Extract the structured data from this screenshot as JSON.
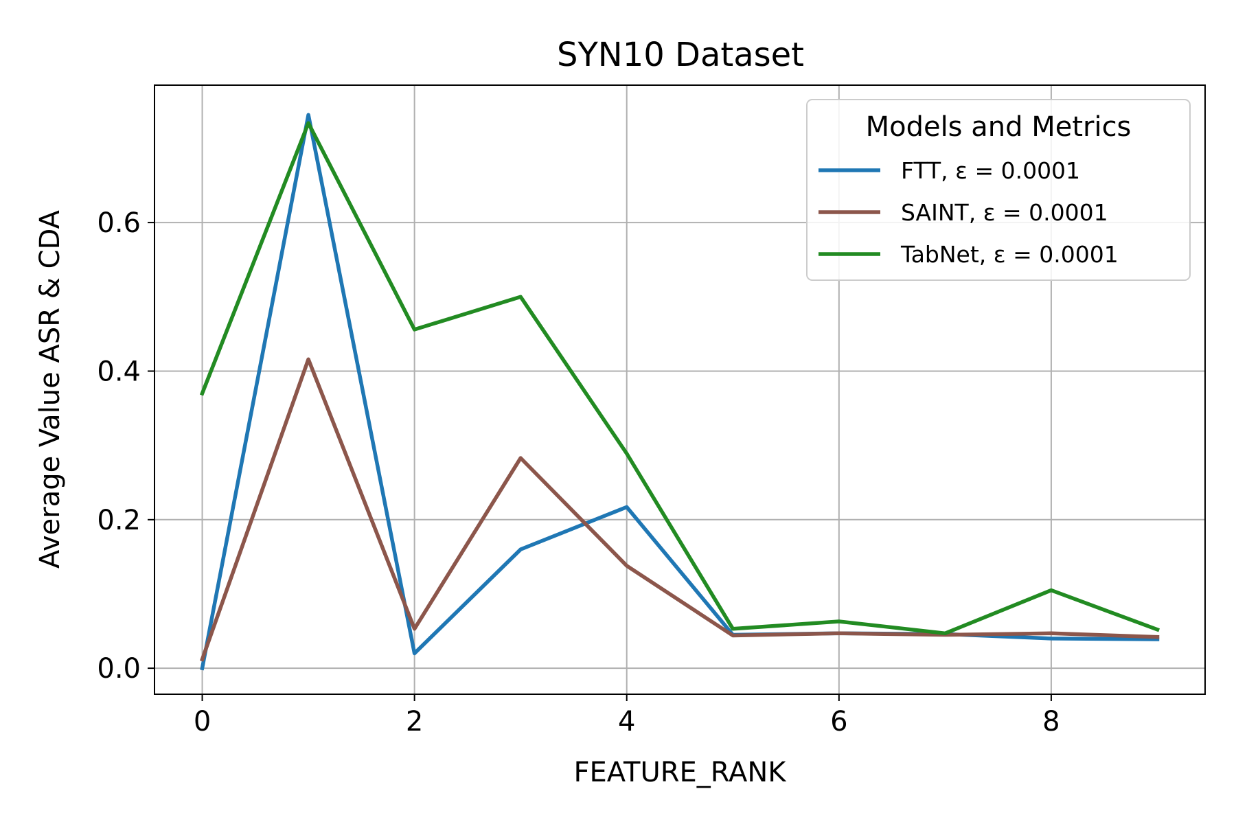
{
  "chart_data": {
    "type": "line",
    "title": "SYN10 Dataset",
    "xlabel": "FEATURE_RANK",
    "ylabel": "Average Value ASR & CDA",
    "x": [
      0,
      1,
      2,
      3,
      4,
      5,
      6,
      7,
      8,
      9
    ],
    "xlim": [
      -0.45,
      9.45
    ],
    "ylim": [
      -0.035,
      0.785
    ],
    "xticks": [
      0,
      2,
      4,
      6,
      8
    ],
    "yticks": [
      0.0,
      0.2,
      0.4,
      0.6
    ],
    "xtick_labels": [
      "0",
      "2",
      "4",
      "6",
      "8"
    ],
    "ytick_labels": [
      "0.0",
      "0.2",
      "0.4",
      "0.6"
    ],
    "grid": true,
    "legend": {
      "title": "Models and Metrics",
      "placement": "top-right"
    },
    "series": [
      {
        "name": "FTT, ε = 0.0001",
        "color": "#1f77b4",
        "values": [
          0.0,
          0.745,
          0.02,
          0.16,
          0.217,
          0.045,
          0.047,
          0.046,
          0.04,
          0.039
        ]
      },
      {
        "name": "SAINT, ε = 0.0001",
        "color": "#8c564b",
        "values": [
          0.012,
          0.416,
          0.053,
          0.283,
          0.138,
          0.044,
          0.047,
          0.045,
          0.047,
          0.042
        ]
      },
      {
        "name": "TabNet, ε = 0.0001",
        "color": "#228b22",
        "values": [
          0.37,
          0.734,
          0.456,
          0.5,
          0.289,
          0.053,
          0.063,
          0.047,
          0.105,
          0.052
        ]
      }
    ]
  }
}
